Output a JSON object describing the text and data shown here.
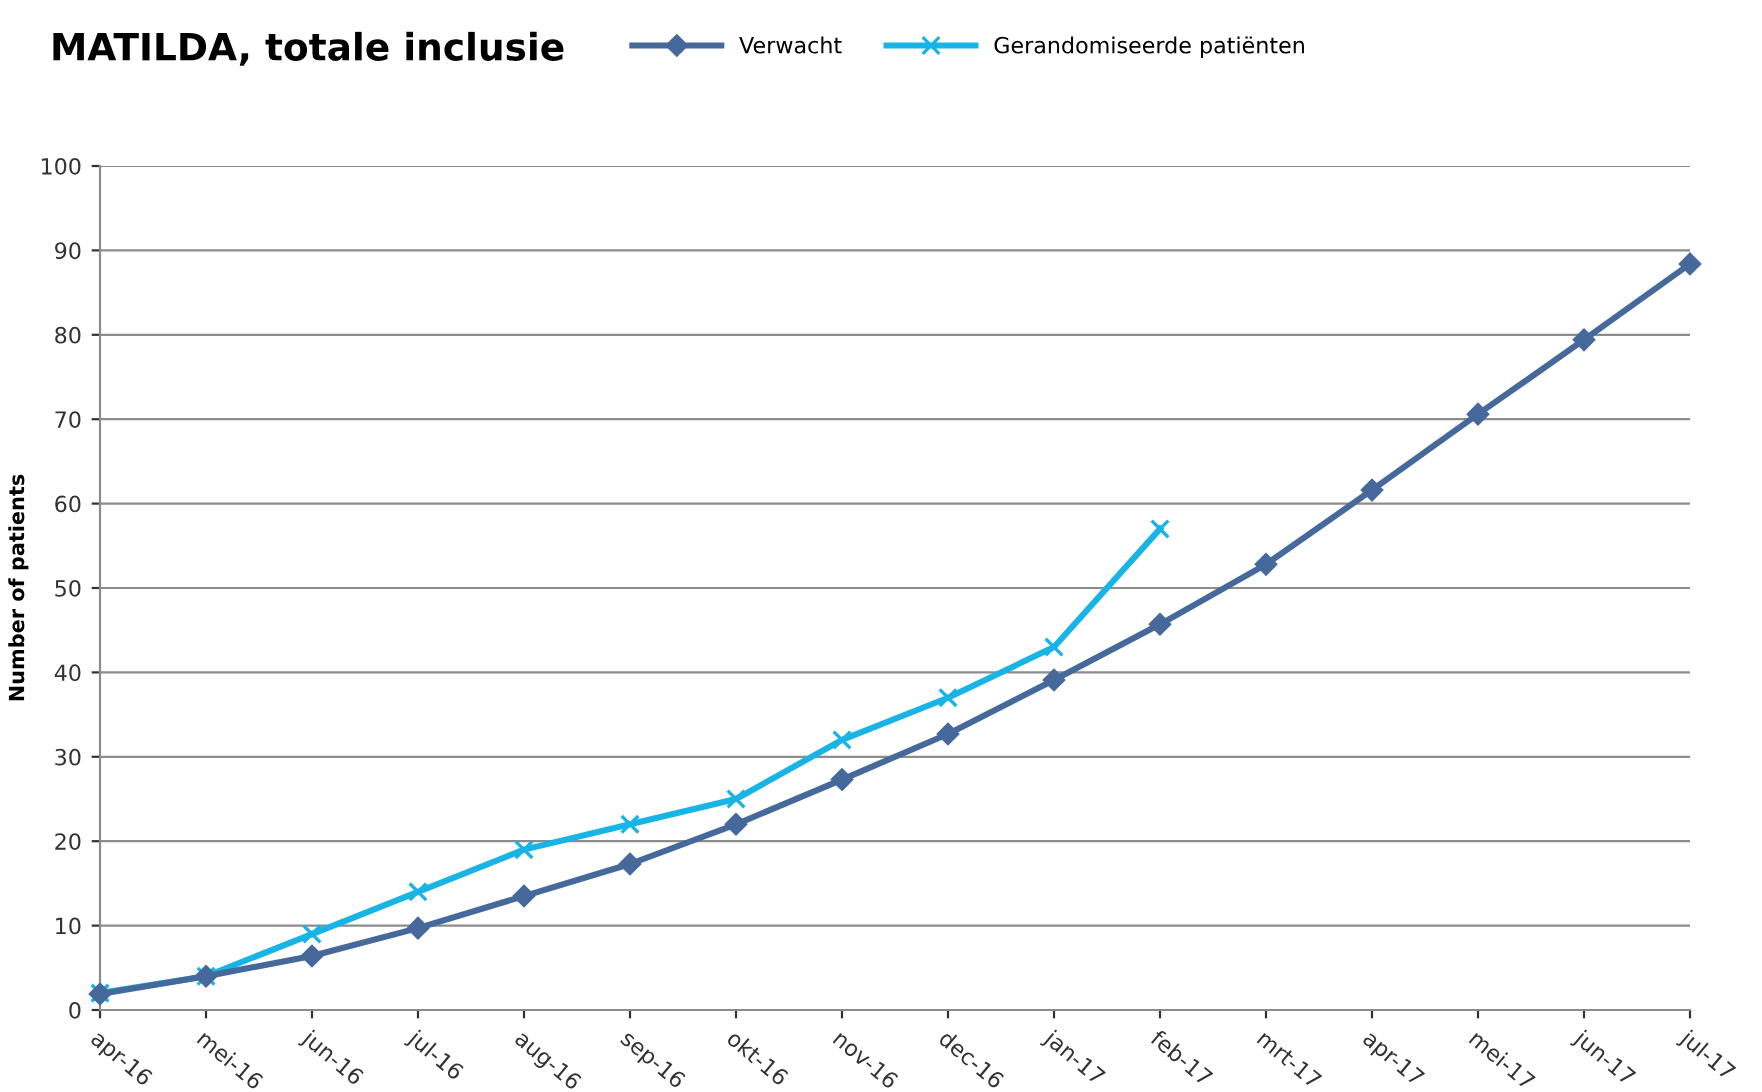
{
  "chart_data": {
    "type": "line",
    "title": "MATILDA, totale inclusie",
    "ylabel": "Number of patients",
    "categories": [
      "apr-16",
      "mei-16",
      "jun-16",
      "jul-16",
      "aug-16",
      "sep-16",
      "okt-16",
      "nov-16",
      "dec-16",
      "jan-17",
      "feb-17",
      "mrt-17",
      "apr-17",
      "mei-17",
      "jun-17",
      "jul-17"
    ],
    "series": [
      {
        "name": "Verwacht",
        "color": "#46699b",
        "marker": "diamond",
        "values": [
          1.9,
          4,
          6.4,
          9.7,
          13.5,
          17.3,
          22,
          27.3,
          32.7,
          39.1,
          45.7,
          52.8,
          61.6,
          70.6,
          79.4,
          88.4
        ]
      },
      {
        "name": "Gerandomiseerde patiënten",
        "color": "#19b4e6",
        "marker": "cross",
        "values": [
          2,
          4,
          9,
          14,
          19,
          22,
          25,
          32,
          37,
          43,
          57,
          null,
          null,
          null,
          null,
          null
        ]
      }
    ],
    "ylim": [
      0,
      100
    ],
    "yticks": [
      0,
      10,
      20,
      30,
      40,
      50,
      60,
      70,
      80,
      90,
      100
    ],
    "grid": "y",
    "legend": "top",
    "line_style": "solid"
  }
}
